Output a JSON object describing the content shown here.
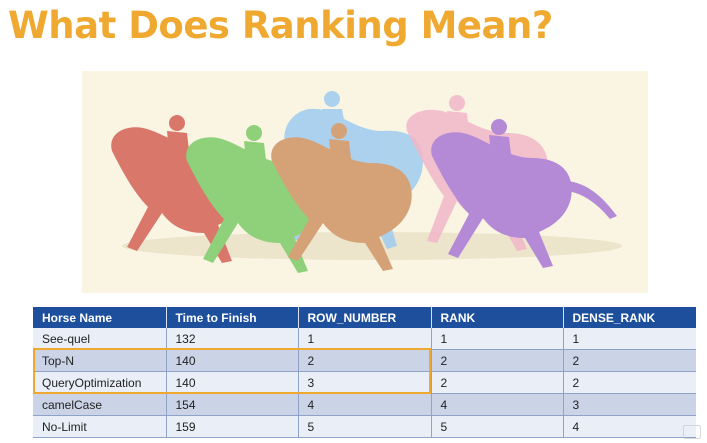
{
  "slide": {
    "title": "What Does Ranking Mean?"
  },
  "illustration": {
    "icon": "horse-racing-illustration",
    "colors": [
      "#d9776b",
      "#8fd07a",
      "#9ecbf0",
      "#d5a277",
      "#f1b7c8",
      "#b48ad6"
    ]
  },
  "table": {
    "columns": [
      "Horse Name",
      "Time to Finish",
      "ROW_NUMBER",
      "RANK",
      "DENSE_RANK"
    ],
    "rows": [
      [
        "See-quel",
        "132",
        "1",
        "1",
        "1"
      ],
      [
        "Top-N",
        "140",
        "2",
        "2",
        "2"
      ],
      [
        "QueryOptimization",
        "140",
        "3",
        "2",
        "2"
      ],
      [
        "camelCase",
        "154",
        "4",
        "4",
        "3"
      ],
      [
        "No-Limit",
        "159",
        "5",
        "5",
        "4"
      ]
    ],
    "highlighted_rows": [
      "Top-N",
      "QueryOptimization"
    ],
    "colors": {
      "header": "#1e4f9c",
      "row_light": "#e9eef7",
      "row_dark": "#cbd4e7",
      "highlight": "#f0a930"
    }
  }
}
